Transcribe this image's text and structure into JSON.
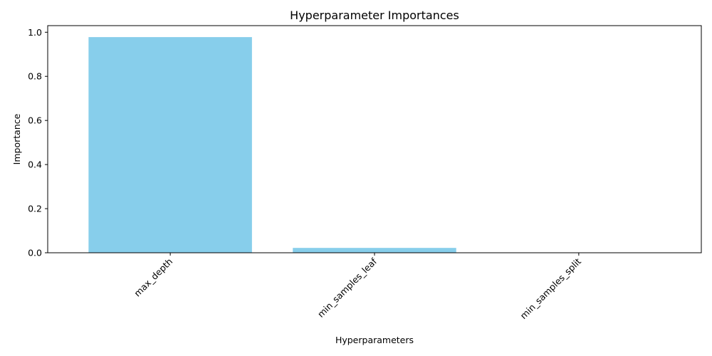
{
  "chart_data": {
    "type": "bar",
    "title": "Hyperparameter Importances",
    "xlabel": "Hyperparameters",
    "ylabel": "Importance",
    "categories": [
      "max_depth",
      "min_samples_leaf",
      "min_samples_split"
    ],
    "values": [
      0.978,
      0.022,
      0.0
    ],
    "ylim": [
      0,
      1.03
    ],
    "yticks": [
      0.0,
      0.2,
      0.4,
      0.6,
      0.8,
      1.0
    ],
    "ytick_labels": [
      "0.0",
      "0.2",
      "0.4",
      "0.6",
      "0.8",
      "1.0"
    ],
    "bar_color": "#87ceeb",
    "grid": false,
    "xtick_rotation": "45 degrees"
  }
}
